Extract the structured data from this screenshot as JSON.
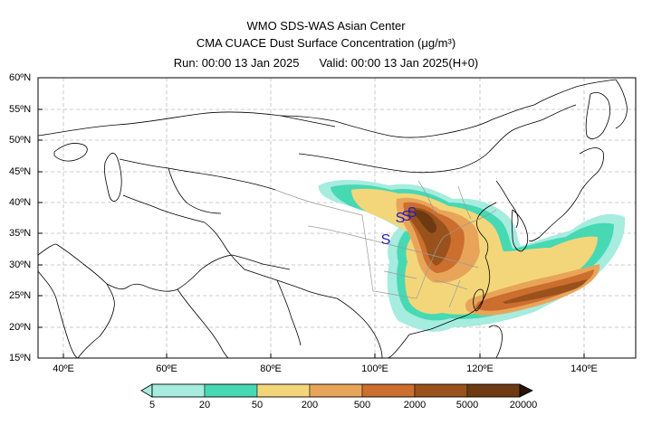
{
  "title": {
    "line1": "WMO SDS-WAS Asian Center",
    "line2": "CMA CUACE Dust Surface Concentration (μg/m³)",
    "run": "Run: 00:00 13 Jan 2025",
    "valid": "Valid: 00:00 13 Jan 2025(H+0)"
  },
  "map": {
    "lat_labels": [
      "60ºN",
      "55ºN",
      "50ºN",
      "45ºN",
      "40ºN",
      "35ºN",
      "30ºN",
      "25ºN",
      "20ºN",
      "15ºN"
    ],
    "lon_labels": [
      "40ºE",
      "60ºE",
      "80ºE",
      "100ºE",
      "120ºE",
      "140ºE"
    ],
    "lon_range": [
      35,
      150
    ],
    "lat_range": [
      15,
      60
    ],
    "grid": true,
    "station_marker": "S",
    "colors": {
      "coast": "#000000",
      "province": "#9a9a9a",
      "grid": "#bbbbbb",
      "station": "#2222bb"
    }
  },
  "colorbar": {
    "labels": [
      "5",
      "20",
      "50",
      "200",
      "500",
      "2000",
      "5000",
      "20000"
    ],
    "colors": [
      "#a6ecdf",
      "#46d9b3",
      "#f4d67a",
      "#e8a55a",
      "#cc6e2e",
      "#9a521c",
      "#6e3a12",
      "#2a1408"
    ]
  }
}
